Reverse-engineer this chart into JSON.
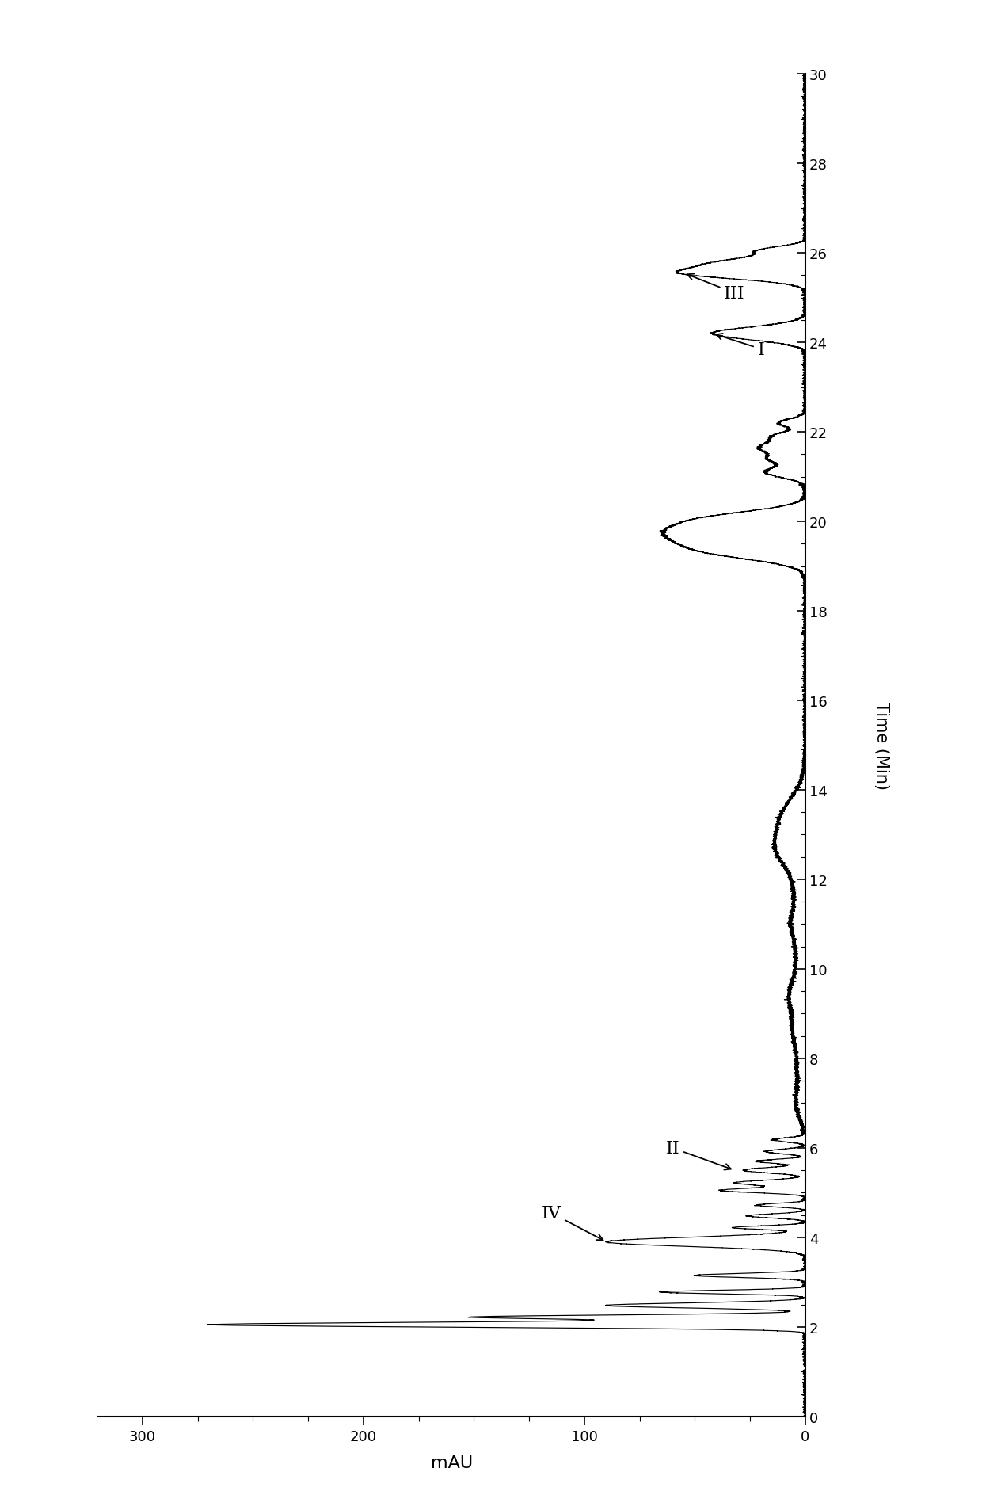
{
  "xlabel": "Time (Min)",
  "ylabel": "mAU",
  "time_lim": [
    0,
    30
  ],
  "mau_lim": [
    0,
    320
  ],
  "mau_ticks": [
    0,
    100,
    200,
    300
  ],
  "time_ticks": [
    0,
    2,
    4,
    6,
    8,
    10,
    12,
    14,
    16,
    18,
    20,
    22,
    24,
    26,
    28,
    30
  ],
  "background_color": "#ffffff",
  "line_color": "#000000",
  "figsize": [
    12.4,
    18.83
  ],
  "dpi": 100,
  "annotations": [
    {
      "label": "I",
      "peak_t": 24.2,
      "peak_s": 42,
      "text_t": 23.85,
      "text_s": 20
    },
    {
      "label": "III",
      "peak_t": 25.55,
      "peak_s": 55,
      "text_t": 25.1,
      "text_s": 32
    },
    {
      "label": "II",
      "peak_t": 5.5,
      "peak_s": 32,
      "text_t": 6.0,
      "text_s": 60
    },
    {
      "label": "IV",
      "peak_t": 3.9,
      "peak_s": 90,
      "text_t": 4.55,
      "text_s": 115
    }
  ]
}
